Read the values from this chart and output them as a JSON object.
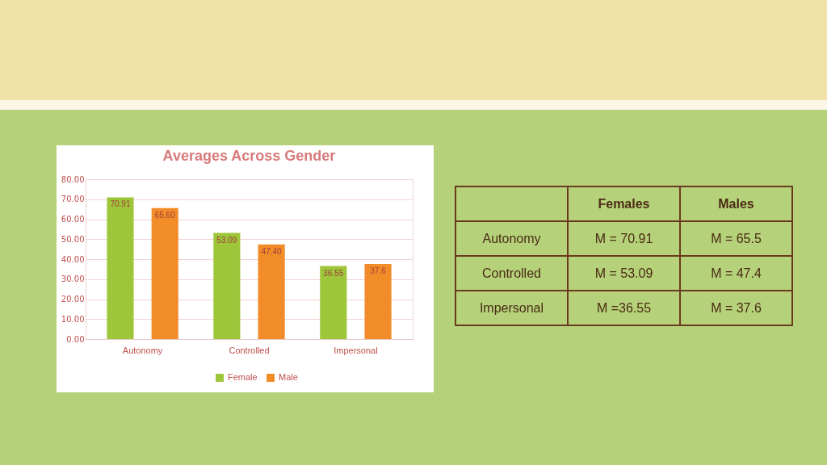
{
  "chart_data": [
    {
      "type": "bar",
      "title": "Averages Across  Gender",
      "categories": [
        "Autonomy",
        "Controlled",
        "Impersonal"
      ],
      "series": [
        {
          "name": "Female",
          "color": "#9dc63a",
          "values": [
            70.91,
            53.09,
            36.55
          ],
          "value_labels": [
            "70.91",
            "53.09",
            "36.55"
          ]
        },
        {
          "name": "Male",
          "color": "#f28c28",
          "values": [
            65.6,
            47.4,
            37.6
          ],
          "value_labels": [
            "65.60",
            "47.40",
            "37.6"
          ]
        }
      ],
      "ylim": [
        0,
        80
      ],
      "yticks": [
        {
          "value": 0,
          "label": "0.00"
        },
        {
          "value": 10,
          "label": "10.00"
        },
        {
          "value": 20,
          "label": "20.00"
        },
        {
          "value": 30,
          "label": "30.00"
        },
        {
          "value": 40,
          "label": "40.00"
        },
        {
          "value": 50,
          "label": "50.00"
        },
        {
          "value": 60,
          "label": "60.00"
        },
        {
          "value": 70,
          "label": "70.00"
        },
        {
          "value": 80,
          "label": "80.00"
        }
      ],
      "grid": "y",
      "legend": "bottom"
    },
    {
      "type": "other",
      "annotations": [
        "Females",
        "Males",
        "Autonomy",
        "M =  70.91",
        "M = 65.5",
        "Controlled",
        "M = 53.09",
        "M = 47.4",
        "Impersonal",
        "M =36.55",
        "M = 37.6"
      ]
    }
  ]
}
